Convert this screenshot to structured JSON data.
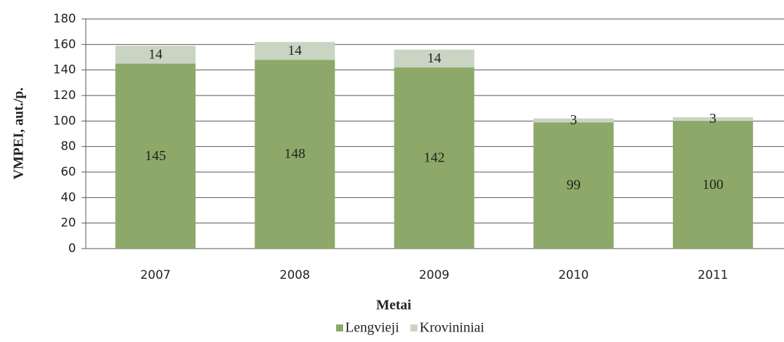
{
  "chart_data": {
    "type": "stacked_bar",
    "x_label": "Metai",
    "y_label": "VMPEI, aut./p.",
    "categories": [
      "2007",
      "2008",
      "2009",
      "2010",
      "2011"
    ],
    "series": [
      {
        "name": "Lengvieji",
        "color": "#8da868",
        "values": [
          145,
          148,
          142,
          99,
          100
        ]
      },
      {
        "name": "Krovininiai",
        "color": "#c9d5c2",
        "values": [
          14,
          14,
          14,
          3,
          3
        ]
      }
    ],
    "ylim": [
      0,
      180
    ],
    "yticks": [
      0,
      20,
      40,
      60,
      80,
      100,
      120,
      140,
      160,
      180
    ],
    "grid": true,
    "legend": "bottom"
  }
}
